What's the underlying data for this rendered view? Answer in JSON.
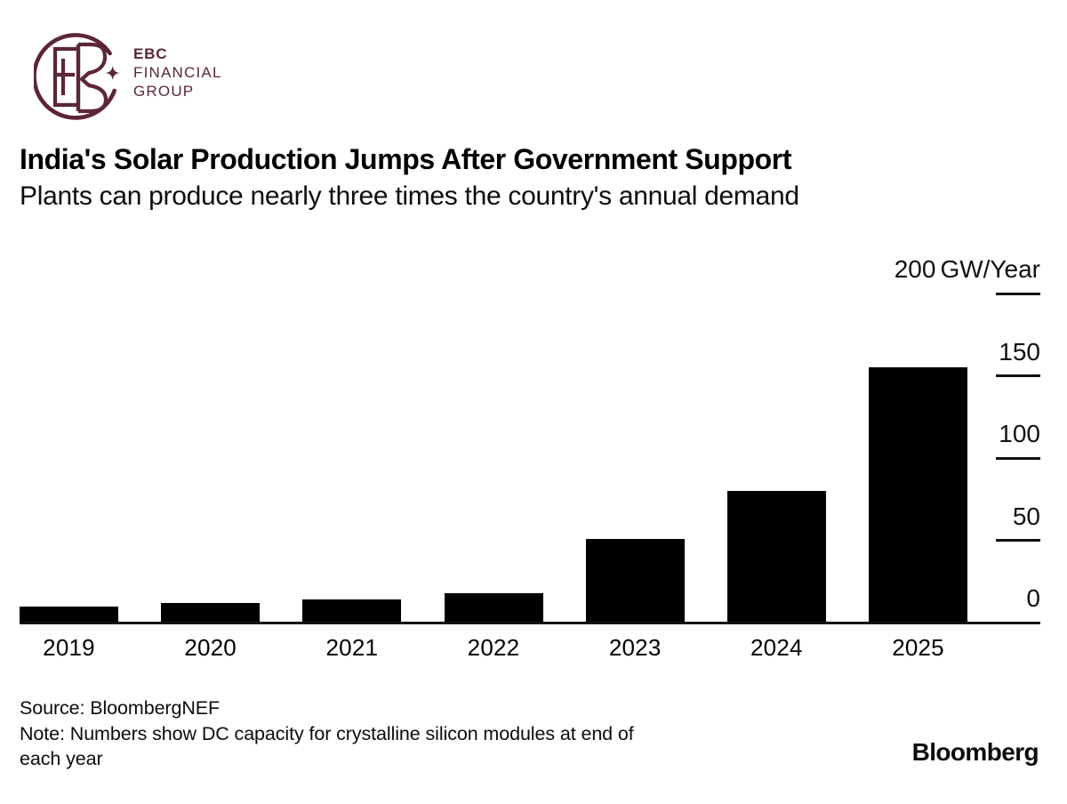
{
  "brand": {
    "color": "#5C2635",
    "line1": "EBC",
    "line2": "FINANCIAL",
    "line3": "GROUP",
    "mark_icon": "ebc-monogram-circle-with-sparkle"
  },
  "chart_data": {
    "type": "bar",
    "title": "India's Solar Production Jumps After Government Support",
    "subtitle": "Plants can produce nearly three times the country's annual demand",
    "categories": [
      "2019",
      "2020",
      "2021",
      "2022",
      "2023",
      "2024",
      "2025"
    ],
    "values": [
      10,
      12,
      14,
      18,
      51,
      80,
      155
    ],
    "unit_label": "GW/Year",
    "y_ticks": [
      0,
      50,
      100,
      150,
      200
    ],
    "ylim": [
      0,
      200
    ],
    "bar_color": "#000000",
    "axis_side": "right",
    "grid": false,
    "legend": "none"
  },
  "footer": {
    "source": "Source: BloombergNEF",
    "note_lines": [
      "Note: Numbers show DC capacity for crystalline silicon modules at end of",
      "each year"
    ],
    "attribution": "Bloomberg"
  }
}
